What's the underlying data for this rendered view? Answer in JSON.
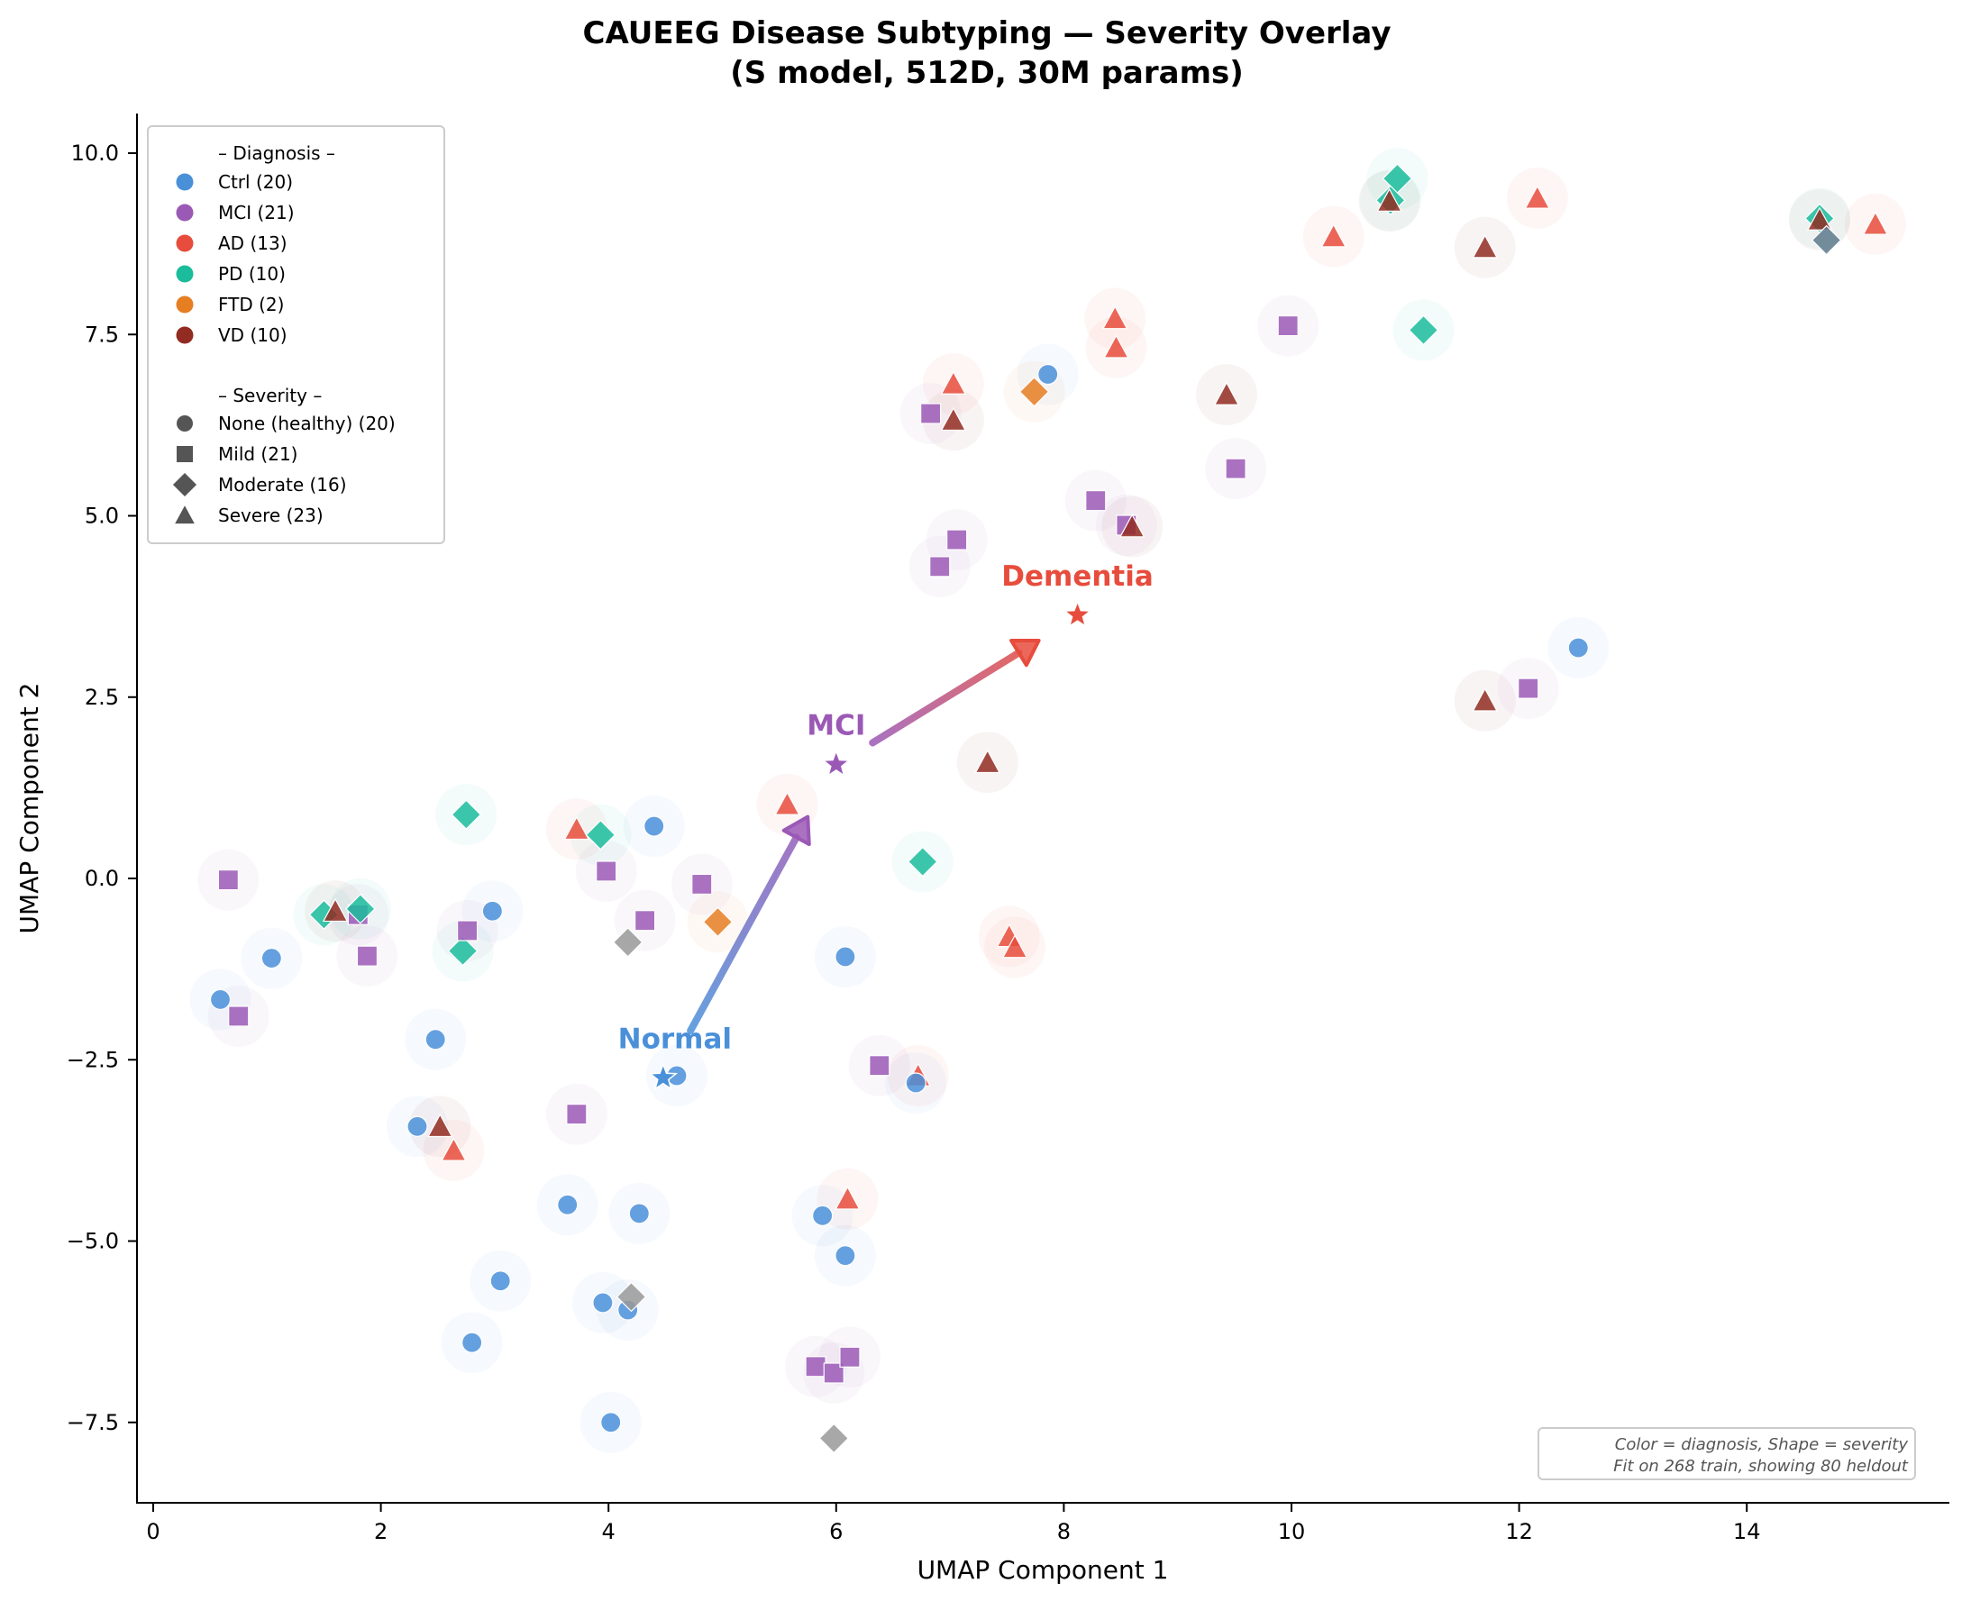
{
  "chart_data": {
    "type": "scatter",
    "title": "CAUEEG Disease Subtyping — Severity Overlay",
    "subtitle": "(S model, 512D, 30M params)",
    "xlabel": "UMAP Component 1",
    "ylabel": "UMAP Component 2",
    "xlim": [
      -0.2,
      15.8
    ],
    "ylim": [
      -8.6,
      10.55
    ],
    "xticks": [
      0,
      2,
      4,
      6,
      8,
      10,
      12,
      14
    ],
    "xtick_labels": [
      "0",
      "2",
      "4",
      "6",
      "8",
      "10",
      "12",
      "14"
    ],
    "yticks": [
      -7.5,
      -5.0,
      -2.5,
      0.0,
      2.5,
      5.0,
      7.5,
      10.0
    ],
    "ytick_labels": [
      "−7.5",
      "−5.0",
      "−2.5",
      "0.0",
      "2.5",
      "5.0",
      "7.5",
      "10.0"
    ],
    "grid": false,
    "colors": {
      "Ctrl": "#4a90d9",
      "MCI": "#9b59b6",
      "AD": "#e74c3c",
      "PD": "#1abc9c",
      "FTD": "#e67e22",
      "VD": "#922b21",
      "Other": "#999999",
      "Other2": "#5d7a8c"
    },
    "legend": {
      "position": "upper-left",
      "diagnosis_header": "– Diagnosis –",
      "diagnosis": [
        {
          "key": "Ctrl",
          "label": "Ctrl (20)"
        },
        {
          "key": "MCI",
          "label": "MCI (21)"
        },
        {
          "key": "AD",
          "label": "AD (13)"
        },
        {
          "key": "PD",
          "label": "PD (10)"
        },
        {
          "key": "FTD",
          "label": "FTD (2)"
        },
        {
          "key": "VD",
          "label": "VD (10)"
        }
      ],
      "severity_header": "– Severity –",
      "severity": [
        {
          "shape": "circle",
          "label": "None (healthy) (20)"
        },
        {
          "shape": "square",
          "label": "Mild (21)"
        },
        {
          "shape": "diamond",
          "label": "Moderate (16)"
        },
        {
          "shape": "triangle",
          "label": "Severe (23)"
        }
      ]
    },
    "annotation": {
      "line1": "Color = diagnosis, Shape = severity",
      "line2": "Fit on 268 train, showing 80 heldout",
      "position": "bottom-right"
    },
    "centroids": [
      {
        "label": "Normal",
        "x": 4.48,
        "y": -2.75,
        "color": "#4a90d9"
      },
      {
        "label": "MCI",
        "x": 6.0,
        "y": 1.57,
        "color": "#9b59b6"
      },
      {
        "label": "Dementia",
        "x": 8.12,
        "y": 3.63,
        "color": "#e74c3c"
      }
    ],
    "arrows": [
      {
        "from": "Normal",
        "to": "MCI",
        "x0": 4.72,
        "y0": -2.1,
        "x1": 5.75,
        "y1": 0.85,
        "color_start": "#4a90d9",
        "color_end": "#9b59b6"
      },
      {
        "from": "MCI",
        "to": "Dementia",
        "x0": 6.32,
        "y0": 1.87,
        "x1": 7.78,
        "y1": 3.28,
        "color_start": "#9b59b6",
        "color_end": "#e74c3c"
      }
    ],
    "points": [
      {
        "x": 0.59,
        "y": -1.67,
        "dx": "Ctrl",
        "sev": "circle"
      },
      {
        "x": 0.75,
        "y": -1.9,
        "dx": "MCI",
        "sev": "square"
      },
      {
        "x": 0.66,
        "y": -0.02,
        "dx": "MCI",
        "sev": "square"
      },
      {
        "x": 1.04,
        "y": -1.1,
        "dx": "Ctrl",
        "sev": "circle"
      },
      {
        "x": 1.5,
        "y": -0.5,
        "dx": "PD",
        "sev": "diamond"
      },
      {
        "x": 1.6,
        "y": -0.45,
        "dx": "VD",
        "sev": "triangle"
      },
      {
        "x": 1.8,
        "y": -0.5,
        "dx": "MCI",
        "sev": "square"
      },
      {
        "x": 1.82,
        "y": -0.42,
        "dx": "PD",
        "sev": "diamond"
      },
      {
        "x": 1.88,
        "y": -1.07,
        "dx": "MCI",
        "sev": "square"
      },
      {
        "x": 2.48,
        "y": -2.22,
        "dx": "Ctrl",
        "sev": "circle"
      },
      {
        "x": 2.32,
        "y": -3.42,
        "dx": "Ctrl",
        "sev": "circle"
      },
      {
        "x": 2.52,
        "y": -3.42,
        "dx": "VD",
        "sev": "triangle"
      },
      {
        "x": 2.64,
        "y": -3.75,
        "dx": "AD",
        "sev": "triangle"
      },
      {
        "x": 2.72,
        "y": -1.0,
        "dx": "PD",
        "sev": "diamond"
      },
      {
        "x": 2.76,
        "y": -0.72,
        "dx": "MCI",
        "sev": "square"
      },
      {
        "x": 2.98,
        "y": -0.45,
        "dx": "Ctrl",
        "sev": "circle"
      },
      {
        "x": 2.75,
        "y": 0.88,
        "dx": "PD",
        "sev": "diamond"
      },
      {
        "x": 3.05,
        "y": -5.55,
        "dx": "Ctrl",
        "sev": "circle"
      },
      {
        "x": 2.8,
        "y": -6.4,
        "dx": "Ctrl",
        "sev": "circle"
      },
      {
        "x": 3.64,
        "y": -4.5,
        "dx": "Ctrl",
        "sev": "circle"
      },
      {
        "x": 3.72,
        "y": -3.25,
        "dx": "MCI",
        "sev": "square"
      },
      {
        "x": 3.72,
        "y": 0.68,
        "dx": "AD",
        "sev": "triangle"
      },
      {
        "x": 3.93,
        "y": 0.6,
        "dx": "PD",
        "sev": "diamond"
      },
      {
        "x": 3.98,
        "y": 0.1,
        "dx": "MCI",
        "sev": "square"
      },
      {
        "x": 4.4,
        "y": 0.72,
        "dx": "Ctrl",
        "sev": "circle"
      },
      {
        "x": 4.17,
        "y": -0.88,
        "dx": "Other",
        "sev": "diamond"
      },
      {
        "x": 4.32,
        "y": -0.58,
        "dx": "MCI",
        "sev": "square"
      },
      {
        "x": 4.82,
        "y": -0.08,
        "dx": "MCI",
        "sev": "square"
      },
      {
        "x": 4.96,
        "y": -0.6,
        "dx": "FTD",
        "sev": "diamond"
      },
      {
        "x": 4.27,
        "y": -4.62,
        "dx": "Ctrl",
        "sev": "circle"
      },
      {
        "x": 3.95,
        "y": -5.85,
        "dx": "Ctrl",
        "sev": "circle"
      },
      {
        "x": 4.17,
        "y": -5.95,
        "dx": "Ctrl",
        "sev": "circle"
      },
      {
        "x": 4.2,
        "y": -5.77,
        "dx": "Other",
        "sev": "diamond"
      },
      {
        "x": 4.02,
        "y": -7.5,
        "dx": "Ctrl",
        "sev": "circle"
      },
      {
        "x": 4.6,
        "y": -2.72,
        "dx": "Ctrl",
        "sev": "circle"
      },
      {
        "x": 5.57,
        "y": 1.02,
        "dx": "AD",
        "sev": "triangle"
      },
      {
        "x": 6.08,
        "y": -1.08,
        "dx": "Ctrl",
        "sev": "circle"
      },
      {
        "x": 5.88,
        "y": -4.65,
        "dx": "Ctrl",
        "sev": "circle"
      },
      {
        "x": 6.1,
        "y": -4.42,
        "dx": "AD",
        "sev": "triangle"
      },
      {
        "x": 6.08,
        "y": -5.2,
        "dx": "Ctrl",
        "sev": "circle"
      },
      {
        "x": 5.82,
        "y": -6.73,
        "dx": "MCI",
        "sev": "square"
      },
      {
        "x": 5.98,
        "y": -6.82,
        "dx": "MCI",
        "sev": "square"
      },
      {
        "x": 6.12,
        "y": -6.6,
        "dx": "MCI",
        "sev": "square"
      },
      {
        "x": 5.98,
        "y": -7.72,
        "dx": "Other",
        "sev": "diamond"
      },
      {
        "x": 6.38,
        "y": -2.58,
        "dx": "MCI",
        "sev": "square"
      },
      {
        "x": 6.72,
        "y": -2.72,
        "dx": "AD",
        "sev": "triangle"
      },
      {
        "x": 6.7,
        "y": -2.82,
        "dx": "Ctrl",
        "sev": "circle"
      },
      {
        "x": 6.76,
        "y": 0.23,
        "dx": "PD",
        "sev": "diamond"
      },
      {
        "x": 7.33,
        "y": 1.6,
        "dx": "VD",
        "sev": "triangle"
      },
      {
        "x": 7.52,
        "y": -0.8,
        "dx": "AD",
        "sev": "triangle"
      },
      {
        "x": 7.57,
        "y": -0.95,
        "dx": "AD",
        "sev": "triangle"
      },
      {
        "x": 6.91,
        "y": 4.3,
        "dx": "MCI",
        "sev": "square"
      },
      {
        "x": 7.06,
        "y": 4.67,
        "dx": "MCI",
        "sev": "square"
      },
      {
        "x": 6.83,
        "y": 6.41,
        "dx": "MCI",
        "sev": "square"
      },
      {
        "x": 7.03,
        "y": 6.32,
        "dx": "VD",
        "sev": "triangle"
      },
      {
        "x": 7.03,
        "y": 6.82,
        "dx": "AD",
        "sev": "triangle"
      },
      {
        "x": 7.86,
        "y": 6.95,
        "dx": "Ctrl",
        "sev": "circle"
      },
      {
        "x": 7.74,
        "y": 6.71,
        "dx": "FTD",
        "sev": "diamond"
      },
      {
        "x": 8.45,
        "y": 7.72,
        "dx": "AD",
        "sev": "triangle"
      },
      {
        "x": 8.46,
        "y": 7.32,
        "dx": "AD",
        "sev": "triangle"
      },
      {
        "x": 8.28,
        "y": 5.21,
        "dx": "MCI",
        "sev": "square"
      },
      {
        "x": 8.55,
        "y": 4.87,
        "dx": "MCI",
        "sev": "square"
      },
      {
        "x": 8.6,
        "y": 4.85,
        "dx": "VD",
        "sev": "triangle"
      },
      {
        "x": 9.43,
        "y": 6.67,
        "dx": "VD",
        "sev": "triangle"
      },
      {
        "x": 9.51,
        "y": 5.65,
        "dx": "MCI",
        "sev": "square"
      },
      {
        "x": 9.97,
        "y": 7.62,
        "dx": "MCI",
        "sev": "square"
      },
      {
        "x": 10.37,
        "y": 8.85,
        "dx": "AD",
        "sev": "triangle"
      },
      {
        "x": 10.93,
        "y": 9.65,
        "dx": "PD",
        "sev": "diamond"
      },
      {
        "x": 10.87,
        "y": 9.35,
        "dx": "PD",
        "sev": "diamond"
      },
      {
        "x": 10.86,
        "y": 9.34,
        "dx": "VD",
        "sev": "triangle"
      },
      {
        "x": 11.16,
        "y": 7.56,
        "dx": "PD",
        "sev": "diamond"
      },
      {
        "x": 11.7,
        "y": 8.7,
        "dx": "VD",
        "sev": "triangle"
      },
      {
        "x": 12.16,
        "y": 9.38,
        "dx": "AD",
        "sev": "triangle"
      },
      {
        "x": 11.7,
        "y": 2.45,
        "dx": "VD",
        "sev": "triangle"
      },
      {
        "x": 12.08,
        "y": 2.62,
        "dx": "MCI",
        "sev": "square"
      },
      {
        "x": 12.52,
        "y": 3.18,
        "dx": "Ctrl",
        "sev": "circle"
      },
      {
        "x": 14.64,
        "y": 9.1,
        "dx": "PD",
        "sev": "diamond"
      },
      {
        "x": 14.64,
        "y": 9.08,
        "dx": "VD",
        "sev": "triangle"
      },
      {
        "x": 14.7,
        "y": 8.8,
        "dx": "Other2",
        "sev": "diamond"
      },
      {
        "x": 15.13,
        "y": 9.02,
        "dx": "AD",
        "sev": "triangle"
      }
    ]
  }
}
